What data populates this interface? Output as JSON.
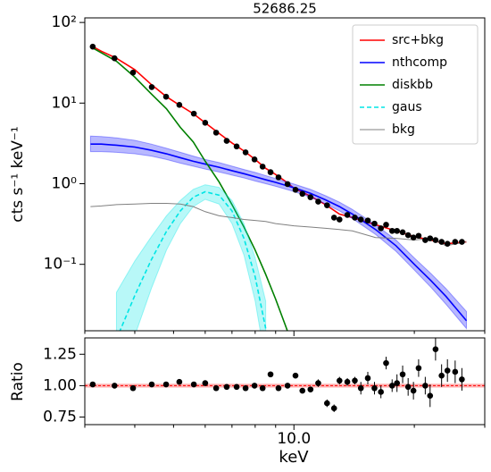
{
  "chart_data": [
    {
      "type": "line",
      "title": "52686.25",
      "ylabel": "cts s⁻¹ keV⁻¹",
      "xscale": "log",
      "yscale": "log",
      "xlim": [
        3,
        30
      ],
      "ylim": [
        0.015,
        114
      ],
      "xticks": [
        10
      ],
      "xminor_ticks": [
        3,
        4,
        5,
        6,
        7,
        8,
        9,
        20,
        30
      ],
      "yticks": [
        {
          "value": 0.1,
          "label": "10⁻¹"
        },
        {
          "value": 1,
          "label": "10⁰"
        },
        {
          "value": 10,
          "label": "10¹"
        },
        {
          "value": 100,
          "label": "10²"
        }
      ],
      "legend": "upper right",
      "series": [
        {
          "name": "src+bkg",
          "color": "#ff0000",
          "linestyle": "solid",
          "x": [
            3.1,
            3.3,
            3.6,
            4,
            4.4,
            4.8,
            5.2,
            5.6,
            6,
            6.5,
            7,
            7.5,
            8,
            8.5,
            9,
            9.5,
            10,
            11,
            12,
            13,
            14,
            16,
            18,
            20,
            22,
            24,
            27
          ],
          "values": [
            52,
            44,
            36,
            26,
            17,
            12,
            9.3,
            7.4,
            5.7,
            4.2,
            3.2,
            2.55,
            2.0,
            1.55,
            1.3,
            1.08,
            0.88,
            0.7,
            0.55,
            0.42,
            0.38,
            0.31,
            0.26,
            0.22,
            0.2,
            0.18,
            0.19
          ]
        },
        {
          "name": "nthcomp",
          "color": "#0000ff",
          "linestyle": "solid",
          "x": [
            3.1,
            3.3,
            3.6,
            4,
            4.4,
            4.8,
            5.2,
            5.6,
            6,
            6.5,
            7,
            7.5,
            8,
            8.5,
            9,
            9.5,
            10,
            11,
            12,
            13,
            14,
            16,
            18,
            20,
            22,
            24,
            27
          ],
          "values": [
            3.1,
            3.1,
            3.0,
            2.85,
            2.6,
            2.35,
            2.1,
            1.9,
            1.75,
            1.6,
            1.45,
            1.33,
            1.22,
            1.12,
            1.04,
            0.96,
            0.89,
            0.76,
            0.63,
            0.52,
            0.42,
            0.27,
            0.17,
            0.1,
            0.063,
            0.04,
            0.02
          ],
          "lower": [
            2.5,
            2.5,
            2.45,
            2.35,
            2.2,
            2.0,
            1.8,
            1.65,
            1.52,
            1.4,
            1.28,
            1.18,
            1.08,
            1.0,
            0.93,
            0.86,
            0.8,
            0.68,
            0.56,
            0.46,
            0.37,
            0.235,
            0.145,
            0.085,
            0.052,
            0.032,
            0.016
          ],
          "upper": [
            3.9,
            3.85,
            3.7,
            3.45,
            3.1,
            2.75,
            2.45,
            2.2,
            2.0,
            1.83,
            1.65,
            1.5,
            1.38,
            1.26,
            1.16,
            1.07,
            0.99,
            0.85,
            0.71,
            0.59,
            0.48,
            0.31,
            0.2,
            0.12,
            0.077,
            0.05,
            0.026
          ]
        },
        {
          "name": "diskbb",
          "color": "#008000",
          "linestyle": "solid",
          "x": [
            3.1,
            3.3,
            3.6,
            4,
            4.4,
            4.8,
            5.2,
            5.6,
            6,
            6.5,
            7,
            7.5,
            8,
            8.5,
            9,
            9.5,
            10
          ],
          "values": [
            50,
            42,
            33,
            21,
            13,
            8.5,
            5.0,
            3.3,
            1.9,
            1.05,
            0.55,
            0.29,
            0.15,
            0.075,
            0.037,
            0.018,
            0.009
          ]
        },
        {
          "name": "gaus",
          "color": "#00e5e5",
          "linestyle": "dashed",
          "x": [
            3.6,
            4,
            4.4,
            4.8,
            5.2,
            5.6,
            6,
            6.5,
            7,
            7.5,
            8,
            8.5
          ],
          "values": [
            0.0118,
            0.041,
            0.114,
            0.256,
            0.46,
            0.68,
            0.795,
            0.72,
            0.46,
            0.21,
            0.07,
            0.016
          ],
          "lower": [
            0.003,
            0.013,
            0.05,
            0.15,
            0.32,
            0.52,
            0.64,
            0.56,
            0.32,
            0.13,
            0.035,
            0.006
          ],
          "upper": [
            0.045,
            0.11,
            0.22,
            0.4,
            0.62,
            0.85,
            0.97,
            0.9,
            0.62,
            0.32,
            0.12,
            0.035
          ]
        },
        {
          "name": "bkg",
          "color": "#808080",
          "linestyle": "solid",
          "x": [
            3.1,
            3.3,
            3.6,
            4,
            4.4,
            4.8,
            5.2,
            5.6,
            6,
            6.5,
            7,
            7.5,
            8,
            8.5,
            9,
            9.5,
            10,
            11,
            12,
            13,
            14,
            16,
            18,
            20,
            22,
            24,
            27
          ],
          "values": [
            0.52,
            0.53,
            0.55,
            0.56,
            0.57,
            0.57,
            0.56,
            0.52,
            0.45,
            0.4,
            0.38,
            0.36,
            0.35,
            0.34,
            0.32,
            0.31,
            0.3,
            0.29,
            0.28,
            0.27,
            0.26,
            0.215,
            0.21,
            0.2,
            0.21,
            0.17,
            0.19
          ]
        }
      ],
      "points": {
        "color": "#000000",
        "x": [
          3.14,
          3.56,
          3.96,
          4.41,
          4.79,
          5.17,
          5.62,
          6.0,
          6.39,
          6.79,
          7.19,
          7.57,
          7.97,
          8.35,
          8.74,
          9.15,
          9.64,
          10.09,
          10.5,
          11.0,
          11.5,
          12.1,
          12.6,
          13.0,
          13.6,
          14.2,
          14.7,
          15.3,
          15.9,
          16.5,
          17.0,
          17.6,
          18.1,
          18.7,
          19.3,
          19.9,
          20.5,
          21.3,
          21.9,
          22.6,
          23.4,
          24.2,
          25.3,
          26.3
        ],
        "values": [
          50.1,
          36,
          23.9,
          15.8,
          12.0,
          9.5,
          7.4,
          5.7,
          4.3,
          3.4,
          2.9,
          2.45,
          2.0,
          1.63,
          1.39,
          1.2,
          0.99,
          0.84,
          0.75,
          0.68,
          0.6,
          0.54,
          0.38,
          0.36,
          0.41,
          0.38,
          0.36,
          0.35,
          0.32,
          0.28,
          0.31,
          0.26,
          0.26,
          0.25,
          0.23,
          0.215,
          0.226,
          0.2,
          0.21,
          0.2,
          0.19,
          0.18,
          0.19,
          0.19
        ]
      }
    },
    {
      "type": "scatter",
      "xlabel": "keV",
      "ylabel": "Ratio",
      "xscale": "log",
      "xlim": [
        3,
        30
      ],
      "ylim": [
        0.69,
        1.38
      ],
      "xticks": [
        {
          "value": 10,
          "label": "10.0"
        }
      ],
      "xminor_ticks": [
        3,
        4,
        5,
        6,
        7,
        8,
        9,
        20,
        30
      ],
      "yticks": [
        {
          "value": 0.75,
          "label": "0.75"
        },
        {
          "value": 1,
          "label": "1.00"
        },
        {
          "value": 1.25,
          "label": "1.25"
        }
      ],
      "hline": 1,
      "hline_color": "#ff0000",
      "hband": [
        0.985,
        1.015
      ],
      "color": "#000000",
      "x": [
        3.14,
        3.56,
        3.96,
        4.41,
        4.79,
        5.17,
        5.62,
        6.0,
        6.39,
        6.79,
        7.19,
        7.57,
        7.97,
        8.35,
        8.74,
        9.15,
        9.64,
        10.09,
        10.5,
        11.0,
        11.5,
        12.1,
        12.6,
        13.0,
        13.6,
        14.2,
        14.7,
        15.3,
        15.9,
        16.5,
        17.0,
        17.6,
        18.1,
        18.7,
        19.3,
        19.9,
        20.5,
        21.3,
        21.9,
        22.6,
        23.4,
        24.2,
        25.3,
        26.3
      ],
      "values": [
        1.01,
        1.0,
        0.98,
        1.01,
        1.01,
        1.03,
        1.01,
        1.02,
        0.98,
        0.99,
        0.99,
        0.98,
        1.0,
        0.98,
        1.09,
        0.98,
        1.0,
        1.08,
        0.96,
        0.97,
        1.02,
        0.86,
        0.82,
        1.04,
        1.03,
        1.04,
        0.98,
        1.06,
        0.98,
        0.95,
        1.18,
        1.0,
        1.02,
        1.09,
        0.99,
        0.96,
        1.14,
        1.0,
        0.92,
        1.29,
        1.08,
        1.12,
        1.11,
        1.05
      ],
      "errors": [
        0.01,
        0.01,
        0.01,
        0.01,
        0.01,
        0.01,
        0.01,
        0.01,
        0.015,
        0.015,
        0.015,
        0.015,
        0.015,
        0.015,
        0.02,
        0.02,
        0.02,
        0.02,
        0.02,
        0.02,
        0.03,
        0.03,
        0.03,
        0.03,
        0.03,
        0.03,
        0.05,
        0.05,
        0.05,
        0.05,
        0.05,
        0.05,
        0.07,
        0.07,
        0.07,
        0.07,
        0.07,
        0.07,
        0.09,
        0.09,
        0.09,
        0.09,
        0.09,
        0.09
      ]
    }
  ]
}
